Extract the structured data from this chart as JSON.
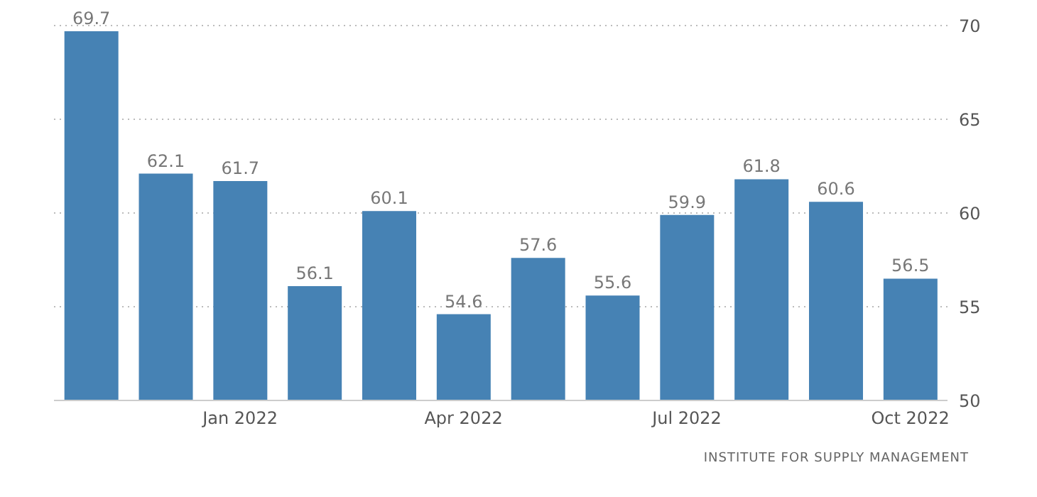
{
  "chart_data": {
    "type": "bar",
    "categories": [
      null,
      null,
      "Jan 2022",
      null,
      null,
      "Apr 2022",
      null,
      null,
      "Jul 2022",
      null,
      null,
      "Oct 2022"
    ],
    "values": [
      69.7,
      62.1,
      61.7,
      56.1,
      60.1,
      54.6,
      57.6,
      55.6,
      59.9,
      61.8,
      60.6,
      56.5
    ],
    "color": "#4682b4",
    "ylim": [
      50,
      70
    ],
    "yticks": [
      50,
      55,
      60,
      65,
      70
    ],
    "grid": "y",
    "data_labels": true,
    "annotations": [
      "INSTITUTE FOR SUPPLY MANAGEMENT"
    ]
  }
}
